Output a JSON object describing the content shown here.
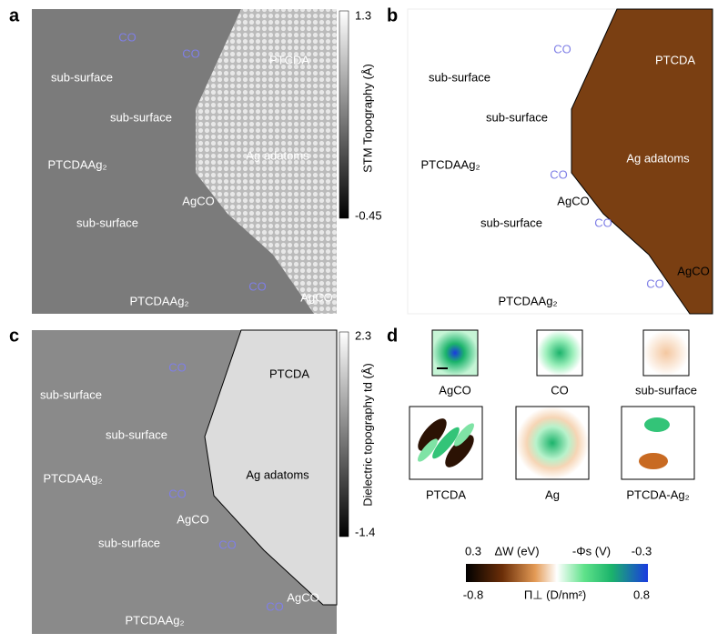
{
  "panels": {
    "a": {
      "label": "a",
      "annotations": [
        "CO",
        "CO",
        "PTCDA",
        "sub-surface",
        "sub-surface",
        "PTCDAAg₂",
        "Ag adatoms",
        "AgCO",
        "sub-surface",
        "PTCDAAg₂",
        "CO",
        "AgCO"
      ],
      "colorbar": {
        "max": "1.3",
        "min": "-0.45",
        "title": "STM Topography (Å)"
      }
    },
    "b": {
      "label": "b",
      "annotations": [
        "CO",
        "PTCDA",
        "sub-surface",
        "sub-surface",
        "PTCDAAg₂",
        "Ag adatoms",
        "CO",
        "AgCO",
        "sub-surface",
        "CO",
        "CO",
        "AgCO",
        "PTCDAAg₂"
      ]
    },
    "c": {
      "label": "c",
      "annotations": [
        "CO",
        "PTCDA",
        "sub-surface",
        "sub-surface",
        "PTCDAAg₂",
        "Ag adatoms",
        "CO",
        "AgCO",
        "sub-surface",
        "CO",
        "AgCO",
        "CO",
        "PTCDAAg₂"
      ],
      "colorbar": {
        "max": "2.3",
        "min": "-1.4",
        "title": "Dielectric topography td (Å)"
      }
    },
    "d": {
      "label": "d",
      "thumbnails": [
        "AgCO",
        "CO",
        "sub-surface",
        "PTCDA",
        "Ag",
        "PTCDA-Ag₂"
      ],
      "colorbar": {
        "top": [
          "0.3",
          "ΔW (eV)",
          "-Φs (V)",
          "-0.3"
        ],
        "bottom": [
          "-0.8",
          "Π⊥ (D/nm²)",
          "0.8"
        ]
      }
    }
  }
}
